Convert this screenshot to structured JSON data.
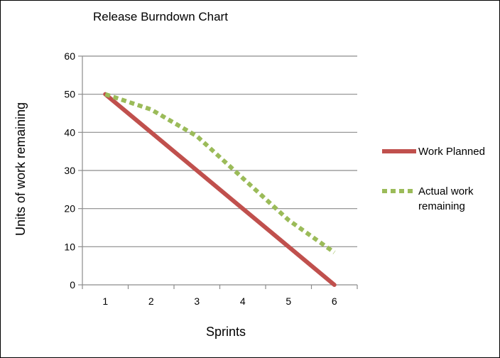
{
  "chart_data": {
    "type": "line",
    "title": "Release Burndown Chart",
    "xlabel": "Sprints",
    "ylabel": "Units of work remaining",
    "x": [
      1,
      2,
      3,
      4,
      5,
      6
    ],
    "xlim": [
      0.5,
      6.5
    ],
    "ylim": [
      0,
      60
    ],
    "yticks": [
      0,
      10,
      20,
      30,
      40,
      50,
      60
    ],
    "grid": true,
    "legend_position": "right",
    "series": [
      {
        "name": "Work Planned",
        "values": [
          50,
          40,
          30,
          20,
          10,
          0
        ],
        "color": "#c0504d",
        "style": "solid"
      },
      {
        "name_lines": [
          "Actual work",
          "remaining"
        ],
        "values": [
          50,
          46,
          39,
          28,
          17,
          8.5
        ],
        "color": "#9bbb59",
        "style": "dotted"
      }
    ]
  }
}
